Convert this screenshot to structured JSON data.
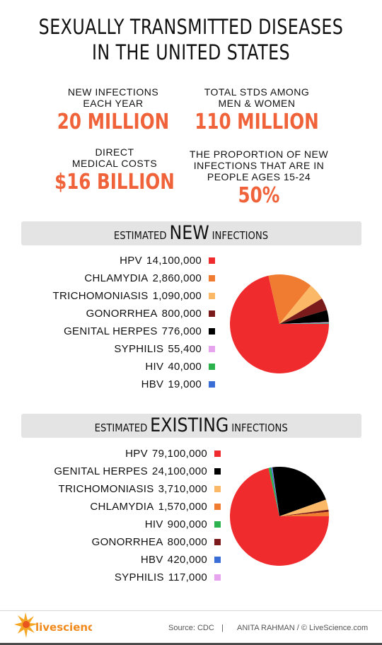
{
  "title": {
    "line1": "SEXUALLY TRANSMITTED DISEASES",
    "line2": "IN THE UNITED STATES"
  },
  "stats": [
    {
      "label_lines": [
        "NEW INFECTIONS",
        "EACH YEAR"
      ],
      "value": "20 MILLION"
    },
    {
      "label_lines": [
        "TOTAL STDS AMONG",
        "MEN & WOMEN"
      ],
      "value": "110 MILLION"
    },
    {
      "label_lines": [
        "DIRECT",
        "MEDICAL COSTS"
      ],
      "value": "$16 BILLION"
    },
    {
      "label_lines": [
        "THE PROPORTION OF NEW",
        "INFECTIONS THAT ARE IN",
        "PEOPLE AGES 15-24"
      ],
      "value": "50%"
    }
  ],
  "sections": {
    "new": {
      "prefix": "ESTIMATED",
      "emphasis": "NEW",
      "suffix": "INFECTIONS"
    },
    "existing": {
      "prefix": "ESTIMATED",
      "emphasis": "EXISTING",
      "suffix": "INFECTIONS"
    }
  },
  "chart_data": [
    {
      "type": "pie",
      "title": "ESTIMATED NEW INFECTIONS",
      "labels": [
        "HPV",
        "CHLAMYDIA",
        "TRICHOMONIASIS",
        "GONORRHEA",
        "GENITAL HERPES",
        "SYPHILIS",
        "HIV",
        "HBV"
      ],
      "display_values": [
        "14,100,000",
        "2,860,000",
        "1,090,000",
        "800,000",
        "776,000",
        "55,400",
        "40,000",
        "19,000"
      ],
      "values": [
        14100000,
        2860000,
        1090000,
        800000,
        776000,
        55400,
        40000,
        19000
      ],
      "colors": [
        "#ef2b2d",
        "#f07c31",
        "#fbb867",
        "#7a1a1a",
        "#000000",
        "#e6a3ee",
        "#2bb24c",
        "#3a6ed6"
      ],
      "start_angle_deg": 90,
      "direction": "clockwise",
      "legend_placement": "left"
    },
    {
      "type": "pie",
      "title": "ESTIMATED EXISTING INFECTIONS",
      "labels": [
        "HPV",
        "GENITAL HERPES",
        "TRICHOMONIASIS",
        "CHLAMYDIA",
        "HIV",
        "GONORRHEA",
        "HBV",
        "SYPHILIS"
      ],
      "display_values": [
        "79,100,000",
        "24,100,000",
        "3,710,000",
        "1,570,000",
        "900,000",
        "800,000",
        "420,000",
        "117,000"
      ],
      "values": [
        79100000,
        24100000,
        3710000,
        1570000,
        900000,
        800000,
        420000,
        117000
      ],
      "colors": [
        "#ef2b2d",
        "#000000",
        "#fbb867",
        "#f07c31",
        "#2bb24c",
        "#7a1a1a",
        "#3a6ed6",
        "#e6a3ee"
      ],
      "pie_order": [
        "HPV",
        "HIV",
        "HBV",
        "SYPHILIS",
        "GENITAL HERPES",
        "TRICHOMONIASIS",
        "GONORRHEA",
        "CHLAMYDIA"
      ],
      "start_angle_deg": 90,
      "direction": "clockwise",
      "legend_placement": "left"
    }
  ],
  "footer": {
    "logo_text": "livescience",
    "source": "Source: CDC",
    "separator": "|",
    "credit": "ANITA RAHMAN / © LiveScience.com"
  },
  "colors": {
    "accent": "#f0633a",
    "bar_bg": "#e4e4e4"
  }
}
